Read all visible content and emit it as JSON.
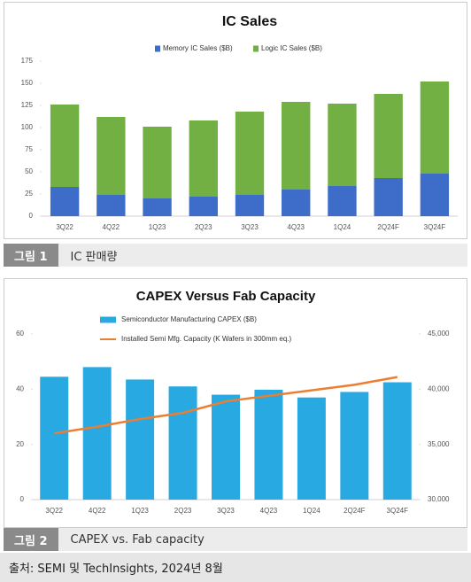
{
  "chart_data": [
    {
      "type": "stacked_bar",
      "title": "IC Sales",
      "legend": "top",
      "categories": [
        "3Q22",
        "4Q22",
        "1Q23",
        "2Q23",
        "3Q23",
        "4Q23",
        "1Q24",
        "2Q24F",
        "3Q24F"
      ],
      "series": [
        {
          "name": "Memory IC Sales ($B)",
          "color": "#3e6cc9",
          "values": [
            33,
            24,
            20,
            22,
            24,
            30,
            34,
            43,
            48
          ]
        },
        {
          "name": "Logic IC Sales ($B)",
          "color": "#72b043",
          "values": [
            93,
            88,
            81,
            86,
            94,
            99,
            93,
            95,
            104
          ]
        }
      ],
      "ylim": [
        0,
        175
      ],
      "yticks": [
        0,
        25,
        50,
        75,
        100,
        125,
        150,
        175
      ]
    },
    {
      "type": "combo",
      "title": "CAPEX Versus Fab Capacity",
      "legend": "top",
      "categories": [
        "3Q22",
        "4Q22",
        "1Q23",
        "2Q23",
        "3Q23",
        "4Q23",
        "1Q24",
        "2Q24F",
        "3Q24F"
      ],
      "series": [
        {
          "name": "Semiconductor Manufacturing CAPEX ($B)",
          "color": "#29a9e1",
          "values": [
            44.5,
            48,
            43.5,
            41,
            38,
            39.8,
            37,
            39,
            42.5
          ]
        },
        {
          "name": "Installed Semi Mfg. Capacity (K Wafers in 300mm eq.)",
          "color": "#ed7d31",
          "axis": "y2",
          "values": [
            36000,
            36600,
            37300,
            37850,
            38900,
            39400,
            39900,
            40400,
            41100
          ]
        }
      ],
      "ylim": [
        0,
        60
      ],
      "yticks": [
        0,
        20,
        40,
        60
      ],
      "y2lim": [
        30000,
        45000
      ],
      "y2ticks": [
        {
          "value": 30000,
          "label": "30,000"
        },
        {
          "value": 35000,
          "label": "35,000"
        },
        {
          "value": 40000,
          "label": "40,000"
        },
        {
          "value": 45000,
          "label": "45,000"
        }
      ]
    }
  ],
  "captions": [
    {
      "label": "그림 1",
      "text": "IC 판매량"
    },
    {
      "label": "그림 2",
      "text": "CAPEX vs. Fab capacity"
    }
  ],
  "source": "출처: SEMI 및 TechInsights, 2024년 8월"
}
